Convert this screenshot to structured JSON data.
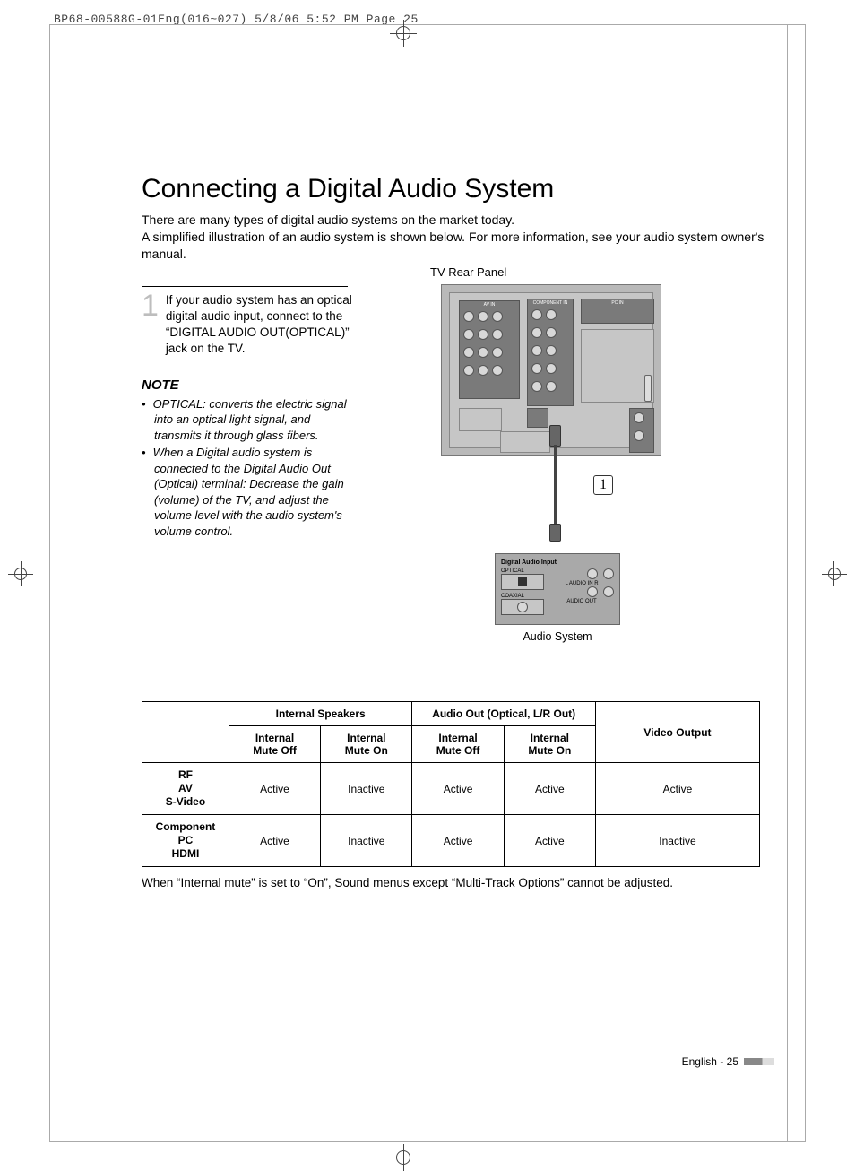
{
  "doc_header": "BP68-00588G-01Eng(016~027)  5/8/06  5:52 PM  Page 25",
  "title": "Connecting a Digital Audio System",
  "intro_line1": "There are many types of digital audio systems on the market today.",
  "intro_line2": "A simplified illustration of an audio system is shown below. For more information, see your audio system owner's manual.",
  "step_num": "1",
  "step_text": "If your audio system has an optical digital audio input, connect to the “DIGITAL AUDIO OUT(OPTICAL)” jack on the TV.",
  "note_heading": "NOTE",
  "note_items": [
    "OPTICAL: converts the electric signal into an optical light signal, and transmits it through glass fibers.",
    "When a Digital audio system is connected to the Digital Audio Out (Optical) terminal: Decrease the gain (volume) of the TV, and adjust the volume level with the audio system's volume control."
  ],
  "diagram": {
    "tv_title": "TV Rear Panel",
    "callout": "1",
    "audio_title": "Digital Audio Input",
    "audio_labels": {
      "optical": "OPTICAL",
      "coaxial": "COAXIAL",
      "audio_in": "L  AUDIO IN  R",
      "audio_out": "AUDIO OUT"
    },
    "audio_caption": "Audio System"
  },
  "table": {
    "group_headers": [
      "Internal Speakers",
      "Audio Out (Optical, L/R Out)"
    ],
    "video_header": "Video Output",
    "sub_headers": [
      "Internal Mute Off",
      "Internal Mute On",
      "Internal Mute Off",
      "Internal Mute On"
    ],
    "rows": [
      {
        "head": [
          "RF",
          "AV",
          "S-Video"
        ],
        "cells": [
          "Active",
          "Inactive",
          "Active",
          "Active",
          "Active"
        ]
      },
      {
        "head": [
          "Component",
          "PC",
          "HDMI"
        ],
        "cells": [
          "Active",
          "Inactive",
          "Active",
          "Active",
          "Inactive"
        ]
      }
    ],
    "note": "When “Internal mute” is set to “On”, Sound menus except “Multi-Track Options” cannot be adjusted."
  },
  "footer": "English - 25"
}
